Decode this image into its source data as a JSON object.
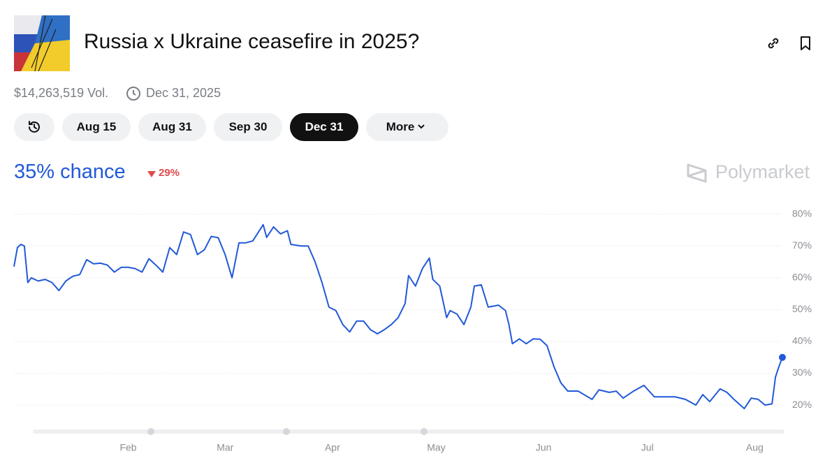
{
  "header": {
    "title": "Russia x Ukraine ceasefire in 2025?",
    "volume": "$14,263,519 Vol.",
    "end_date": "Dec 31, 2025"
  },
  "tabs": [
    "Aug 15",
    "Aug 31",
    "Sep 30",
    "Dec 31",
    "More"
  ],
  "active_tab": "Dec 31",
  "headline": {
    "chance": "35% chance",
    "change": "29%"
  },
  "brand": "Polymarket",
  "chart_data": {
    "type": "line",
    "color": "#2159d8",
    "grid": true,
    "last_point_marker": true,
    "x": [
      -2,
      -1,
      0,
      1,
      2,
      3,
      5,
      7,
      9,
      11,
      13,
      15,
      17,
      19,
      21,
      23,
      25,
      27,
      29,
      31,
      33,
      35,
      37,
      39,
      41,
      43,
      45,
      47,
      49,
      51,
      53,
      55,
      57,
      59,
      61,
      63,
      65,
      67,
      70,
      71,
      73,
      75,
      77,
      78,
      81,
      83,
      85,
      87,
      89,
      91,
      93,
      95,
      97,
      99,
      101,
      103,
      105,
      107,
      109,
      111,
      112,
      114,
      116,
      118,
      119,
      121,
      123,
      124,
      126,
      128,
      130,
      131,
      133,
      135,
      138,
      140,
      141,
      142,
      144,
      146,
      148,
      150,
      152,
      154,
      156,
      158,
      161,
      165,
      167,
      170,
      172,
      174,
      177,
      180,
      183,
      186,
      189,
      192,
      195,
      197,
      199,
      202,
      204,
      206,
      209,
      211,
      213,
      215,
      217,
      218,
      219,
      220
    ],
    "values": [
      63.5,
      69.5,
      70.5,
      70,
      58.5,
      60,
      59,
      59.5,
      58.5,
      56,
      59,
      60.5,
      61,
      65.7,
      64.4,
      64.6,
      64,
      61.8,
      63.3,
      63.3,
      62.9,
      61.8,
      66,
      64,
      61.8,
      69.5,
      67.3,
      74.4,
      73.6,
      67.3,
      68.8,
      73,
      72.6,
      67.3,
      60,
      71,
      71,
      71.6,
      76.7,
      72.7,
      76,
      73.8,
      74.8,
      70.5,
      70,
      70,
      65,
      58.5,
      50.8,
      49.7,
      45.3,
      43,
      46.4,
      46.4,
      43.7,
      42.4,
      43.7,
      45.3,
      47.5,
      51.9,
      60.7,
      57.4,
      62.9,
      66.2,
      59.5,
      57.4,
      47.5,
      49.7,
      48.6,
      45.3,
      50.8,
      57.4,
      57.8,
      50.8,
      51.4,
      49.7,
      45.3,
      39.3,
      40.8,
      39.3,
      40.8,
      40.7,
      38.7,
      32.1,
      27,
      24.4,
      24.4,
      21.8,
      24.8,
      24,
      24.4,
      22.2,
      24.4,
      26.2,
      22.6,
      22.6,
      22.6,
      21.8,
      20,
      23.3,
      21.1,
      25.1,
      24,
      21.8,
      18.9,
      22.2,
      21.8,
      20,
      20.4,
      28.8,
      32.1,
      35
    ],
    "xlim": [
      -2,
      220
    ],
    "xticks": [
      {
        "value": 31,
        "label": "Feb"
      },
      {
        "value": 59,
        "label": "Mar"
      },
      {
        "value": 90,
        "label": "Apr"
      },
      {
        "value": 120,
        "label": "May"
      },
      {
        "value": 151,
        "label": "Jun"
      },
      {
        "value": 181,
        "label": "Jul"
      },
      {
        "value": 212,
        "label": "Aug"
      }
    ],
    "ylim": [
      13,
      83
    ],
    "yticks": [
      {
        "value": 20,
        "label": "20%"
      },
      {
        "value": 30,
        "label": "30%"
      },
      {
        "value": 40,
        "label": "40%"
      },
      {
        "value": 50,
        "label": "50%"
      },
      {
        "value": 60,
        "label": "60%"
      },
      {
        "value": 70,
        "label": "70%"
      },
      {
        "value": 80,
        "label": "80%"
      }
    ]
  }
}
